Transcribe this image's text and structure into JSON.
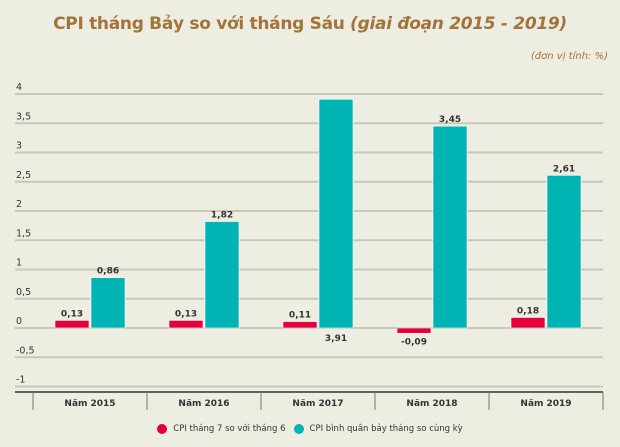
{
  "header": {
    "title_main": "CPI tháng Bảy so với tháng Sáu",
    "title_sub": "(giai đoạn 2015 - 2019)",
    "unit_note": "(đơn vị tính: %)"
  },
  "colors": {
    "series_1": "#e4003a",
    "series_2": "#00b4b4",
    "title": "#a2733b",
    "background": "#eeede2",
    "gridline": "#c9c8bb"
  },
  "chart_data": {
    "type": "bar",
    "title": "CPI tháng Bảy so với tháng Sáu (giai đoạn 2015 - 2019)",
    "unit": "(đơn vị tính: %)",
    "xlabel": "",
    "ylabel": "",
    "categories": [
      "Năm 2015",
      "Năm 2016",
      "Năm 2017",
      "Năm 2018",
      "Năm 2019"
    ],
    "series": [
      {
        "name": "CPI tháng 7 so với tháng 6",
        "values": [
          0.13,
          0.13,
          0.11,
          -0.09,
          0.18
        ],
        "labels": [
          "0,13",
          "0,13",
          "0,11",
          "-0,09",
          "0,18"
        ],
        "label_position": [
          "above",
          "above",
          "above",
          "below",
          "above"
        ]
      },
      {
        "name": "CPI bình quân bảy tháng so cùng kỳ",
        "values": [
          0.86,
          1.82,
          3.91,
          3.45,
          2.61
        ],
        "labels": [
          "0,86",
          "1,82",
          "3,91",
          "3,45",
          "2,61"
        ],
        "label_position": [
          "above",
          "above",
          "below-axis",
          "above",
          "above"
        ]
      }
    ],
    "ylim": [
      -1,
      4
    ],
    "yticks": [
      4,
      3.5,
      3,
      2.5,
      2,
      1.5,
      1,
      0.5,
      0,
      -0.5,
      -1
    ],
    "ytick_labels": [
      "4",
      "3,5",
      "3",
      "2,5",
      "2",
      "1,5",
      "1",
      "0,5",
      "0",
      "-0,5",
      "-1"
    ],
    "grid": true,
    "legend_position": "bottom"
  }
}
